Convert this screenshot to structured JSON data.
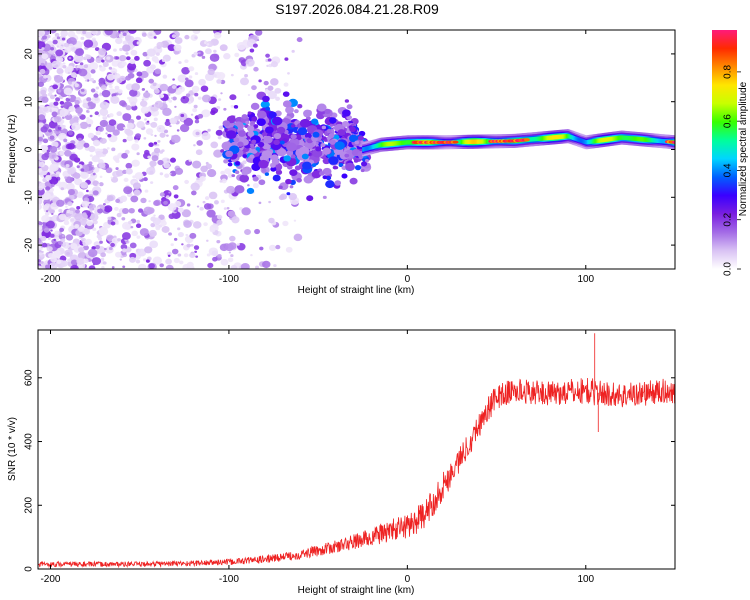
{
  "figure_title": "S197.2026.084.21.28.R09",
  "chart_data": [
    {
      "type": "heatmap",
      "name": "spectrogram",
      "xlabel": "Height of straight line (km)",
      "ylabel": "Frequency (Hz)",
      "xlim": [
        -207,
        150
      ],
      "ylim": [
        -25,
        25
      ],
      "xticks": [
        -200,
        -100,
        0,
        100
      ],
      "yticks": [
        -20,
        -10,
        0,
        10,
        20
      ],
      "colorbar": {
        "label": "Normalized spectral amplitude",
        "range": [
          0,
          0.97
        ],
        "ticks": [
          0.0,
          0.2,
          0.4,
          0.6,
          0.8
        ],
        "colors": [
          "#ffffff",
          "#d9c2f4",
          "#a36be6",
          "#7a1fe0",
          "#3a00ff",
          "#0060ff",
          "#00d5ff",
          "#00ff9a",
          "#38ff00",
          "#c8ff00",
          "#ffe600",
          "#ff8a00",
          "#ff2a00",
          "#ff1a7a"
        ]
      },
      "signal_track": {
        "description_free": true,
        "start_km": -100,
        "knots": [
          {
            "x": -100,
            "y": 1.0
          },
          {
            "x": -60,
            "y": 1.5
          },
          {
            "x": -30,
            "y": 1.5
          },
          {
            "x": -25,
            "y": 0.0
          },
          {
            "x": -15,
            "y": 1.0
          },
          {
            "x": 0,
            "y": 1.5
          },
          {
            "x": 20,
            "y": 1.5
          },
          {
            "x": 60,
            "y": 1.8
          },
          {
            "x": 90,
            "y": 2.8
          },
          {
            "x": 100,
            "y": 1.5
          },
          {
            "x": 120,
            "y": 2.5
          },
          {
            "x": 150,
            "y": 1.5
          }
        ],
        "peak_amplitude": 0.9
      }
    },
    {
      "type": "line",
      "name": "snr",
      "xlabel": "Height of straight line (km)",
      "ylabel": "SNR (10 * v/v)",
      "xlim": [
        -207,
        150
      ],
      "ylim": [
        0,
        750
      ],
      "xticks": [
        -200,
        -100,
        0,
        100
      ],
      "yticks": [
        0,
        200,
        400,
        600
      ],
      "color": "#ee2222",
      "series": [
        {
          "name": "SNR",
          "x": [
            -207,
            -180,
            -150,
            -120,
            -100,
            -80,
            -60,
            -40,
            -30,
            -20,
            -10,
            0,
            10,
            20,
            30,
            40,
            45,
            50,
            60,
            70,
            80,
            90,
            100,
            110,
            120,
            130,
            140,
            150
          ],
          "y": [
            15,
            15,
            15,
            18,
            22,
            30,
            45,
            70,
            85,
            100,
            120,
            135,
            170,
            260,
            350,
            450,
            500,
            540,
            560,
            555,
            550,
            555,
            560,
            550,
            545,
            550,
            555,
            560
          ],
          "noise": [
            8,
            8,
            8,
            9,
            10,
            12,
            15,
            20,
            25,
            30,
            35,
            40,
            45,
            45,
            40,
            40,
            40,
            40,
            40,
            38,
            38,
            40,
            45,
            40,
            40,
            40,
            40,
            40
          ]
        }
      ],
      "annotations": [
        {
          "x": 105,
          "y": 740,
          "label": ""
        },
        {
          "x": 107,
          "y": 430,
          "label": ""
        }
      ]
    }
  ]
}
